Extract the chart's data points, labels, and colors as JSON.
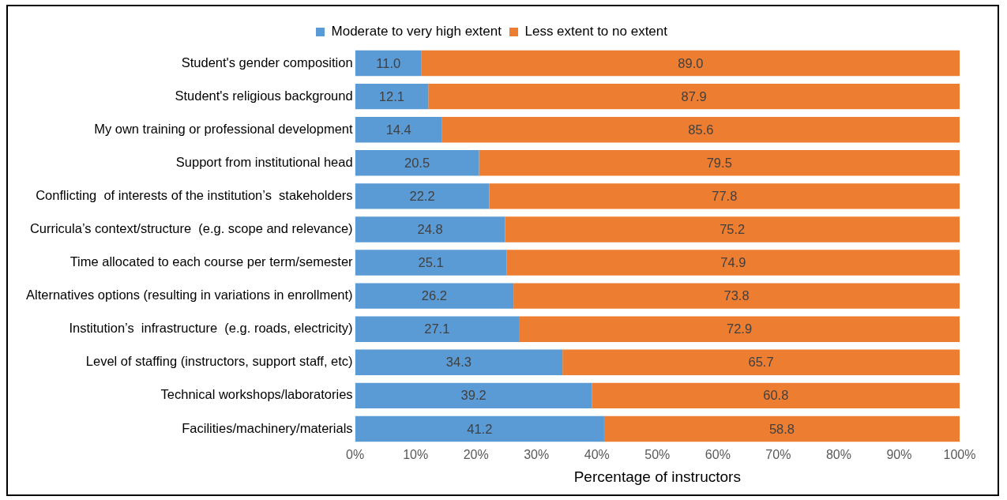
{
  "chart_data": {
    "type": "bar",
    "orientation": "horizontal",
    "stacked": true,
    "xlabel": "Percentage of instructors",
    "categories": [
      "Student's gender composition",
      "Student's religious background",
      "My own training or professional development",
      "Support from institutional head",
      "Conflicting  of interests of the institution’s  stakeholders",
      "Curricula’s context/structure  (e.g. scope and relevance)",
      "Time allocated to each course per term/semester",
      "Alternatives options (resulting in variations in enrollment)",
      "Institution’s  infrastructure  (e.g. roads, electricity)",
      "Level of staffing (instructors, support staff, etc)",
      "Technical workshops/laboratories",
      "Facilities/machinery/materials"
    ],
    "series": [
      {
        "name": "Moderate to very high extent",
        "color": "#5b9bd5",
        "values": [
          11.0,
          12.1,
          14.4,
          20.5,
          22.2,
          24.8,
          25.1,
          26.2,
          27.1,
          34.3,
          39.2,
          41.2
        ],
        "value_labels": [
          "11.0",
          "12.1",
          "14.4",
          "20.5",
          "22.2",
          "24.8",
          "25.1",
          "26.2",
          "27.1",
          "34.3",
          "39.2",
          "41.2"
        ]
      },
      {
        "name": "Less extent to no extent",
        "color": "#ed7d31",
        "values": [
          89.0,
          87.9,
          85.6,
          79.5,
          77.8,
          75.2,
          74.9,
          73.8,
          72.9,
          65.7,
          60.8,
          58.8
        ],
        "value_labels": [
          "89.0",
          "87.9",
          "85.6",
          "79.5",
          "77.8",
          "75.2",
          "74.9",
          "73.8",
          "72.9",
          "65.7",
          "60.8",
          "58.8"
        ]
      }
    ],
    "xlim": [
      0,
      100
    ],
    "xticks": [
      {
        "value": 0,
        "label": "0%"
      },
      {
        "value": 10,
        "label": "10%"
      },
      {
        "value": 20,
        "label": "20%"
      },
      {
        "value": 30,
        "label": "30%"
      },
      {
        "value": 40,
        "label": "40%"
      },
      {
        "value": 50,
        "label": "50%"
      },
      {
        "value": 60,
        "label": "60%"
      },
      {
        "value": 70,
        "label": "70%"
      },
      {
        "value": 80,
        "label": "80%"
      },
      {
        "value": 90,
        "label": "90%"
      },
      {
        "value": 100,
        "label": "100%"
      }
    ],
    "grid": false,
    "legend": "top"
  }
}
